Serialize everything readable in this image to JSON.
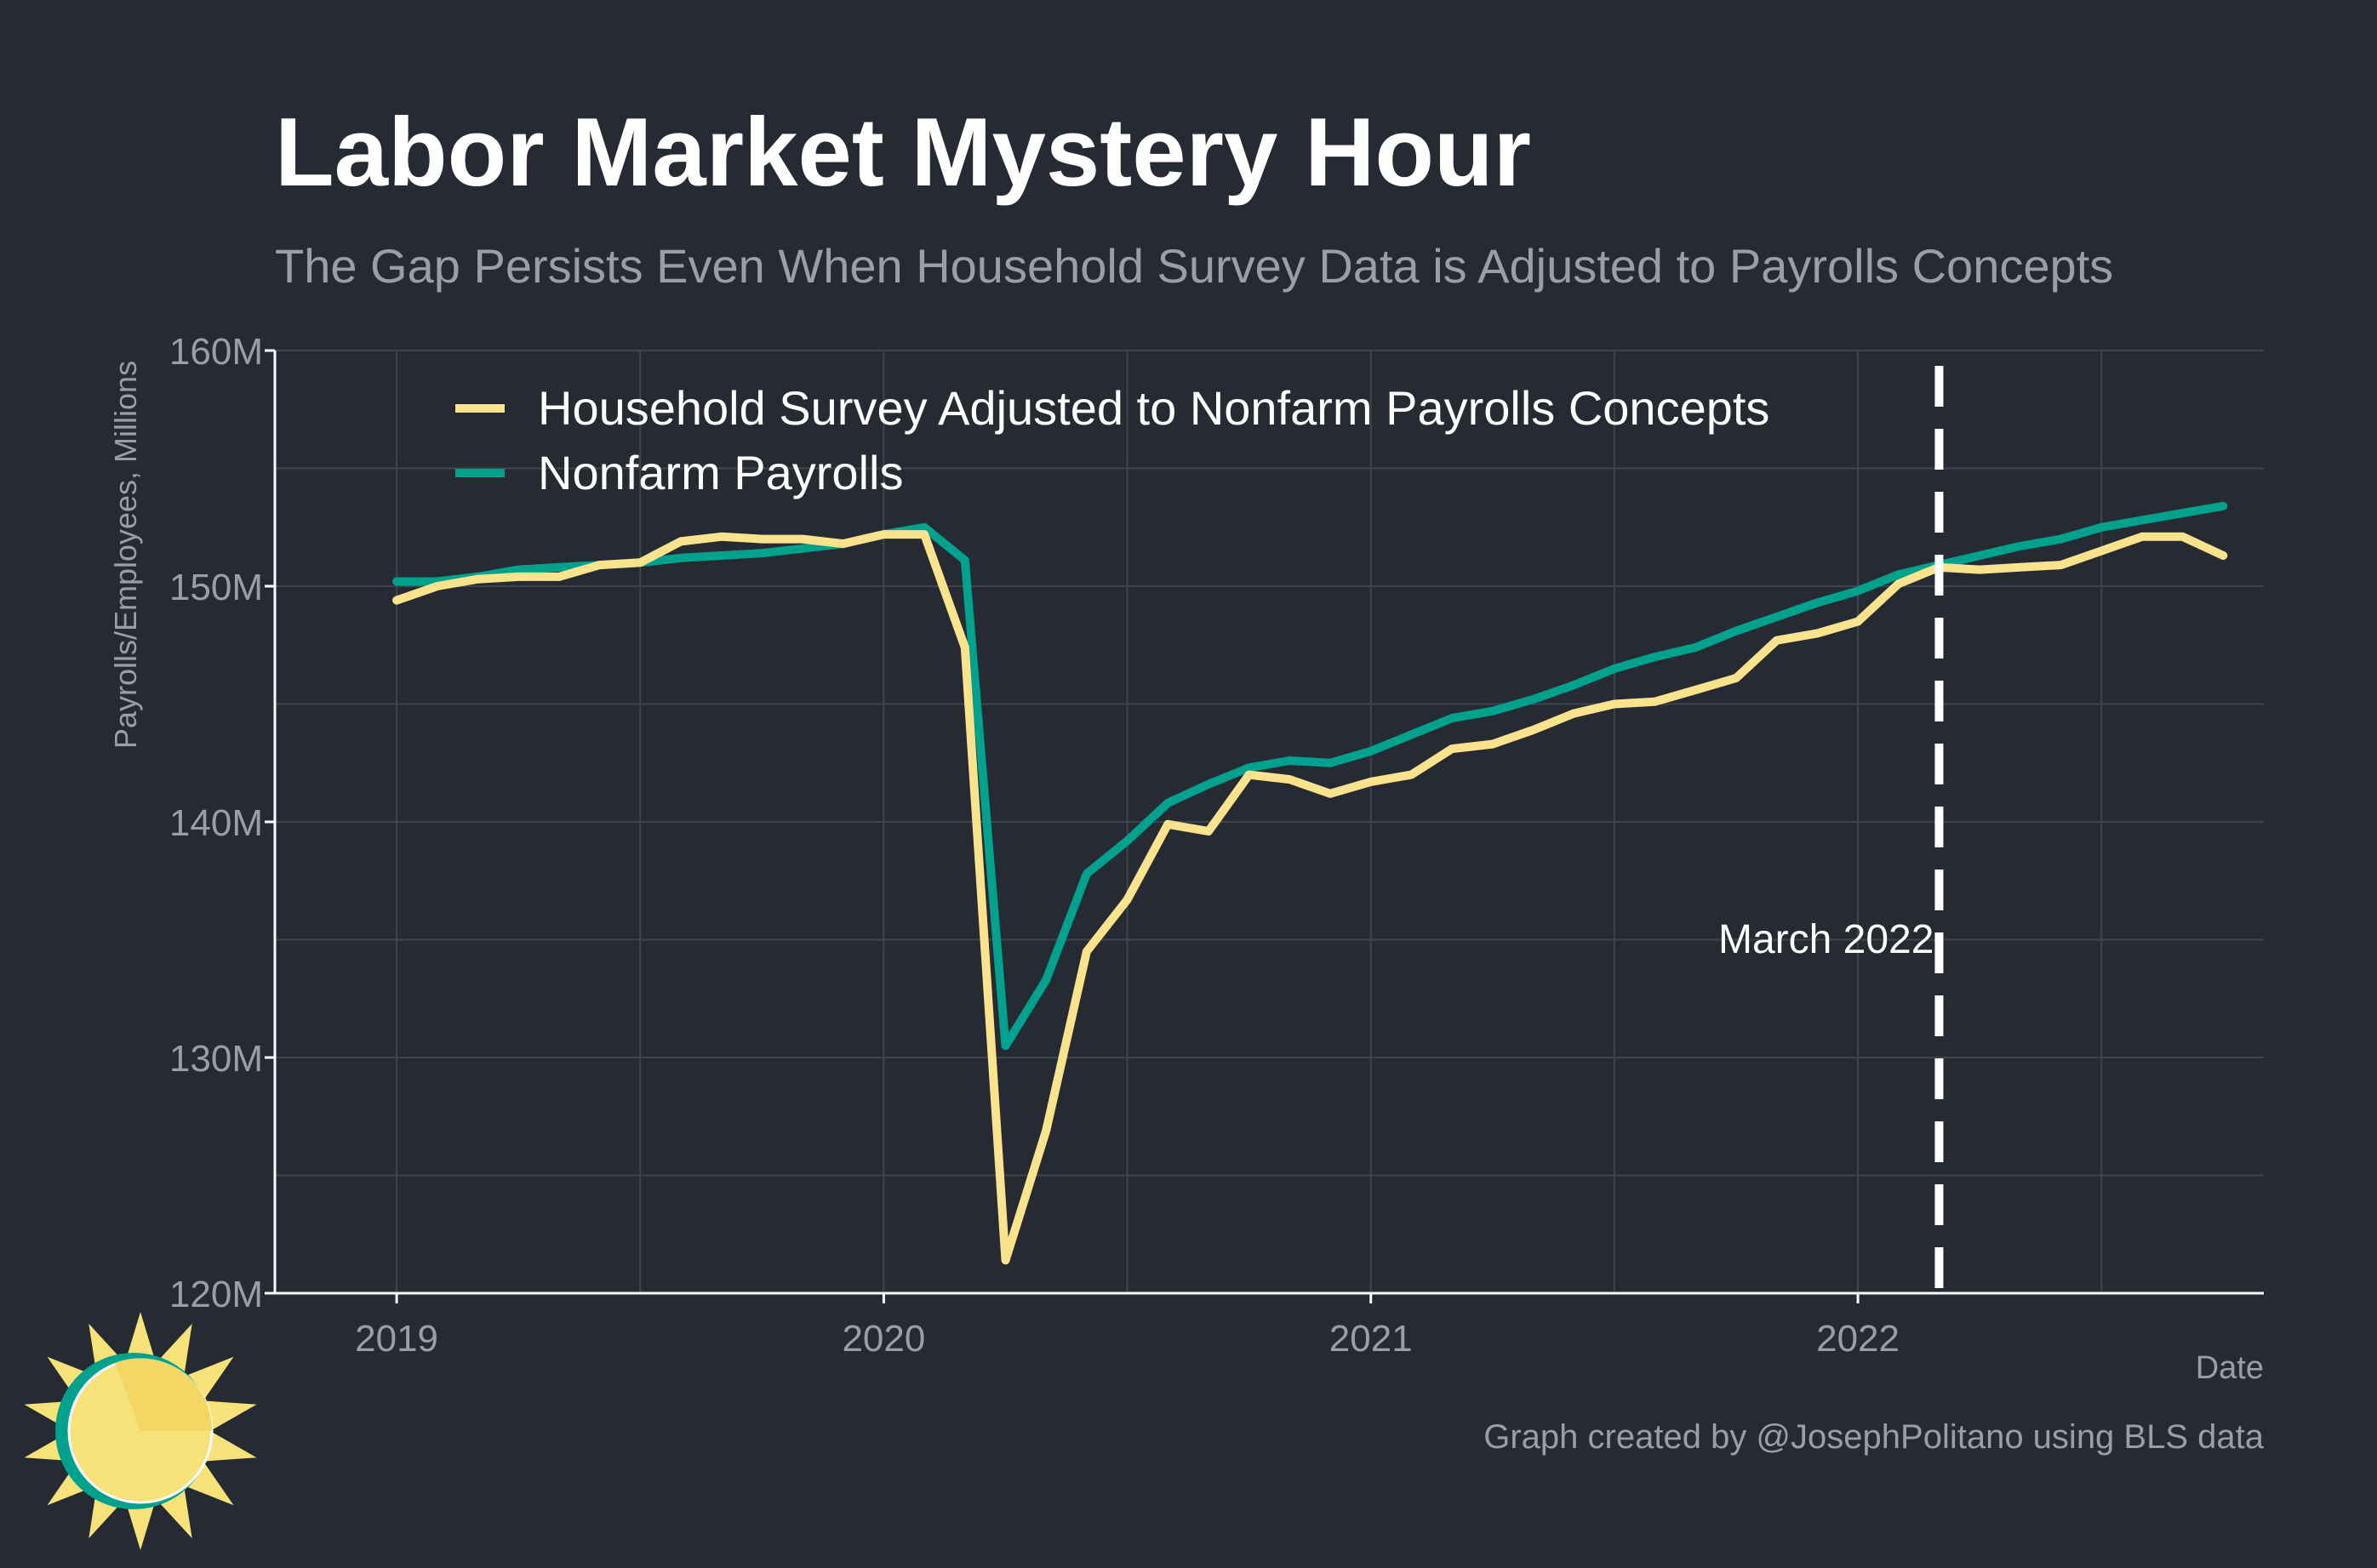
{
  "colors": {
    "background": "#252a33",
    "grid": "#3f444d",
    "axis": "#ffffff",
    "household": "#fbe38e",
    "payrolls": "#00a28e",
    "text_muted": "#9a9ea6",
    "logo_sun": "#f7e27a",
    "logo_ring": "#00a28e"
  },
  "chart_data": {
    "type": "line",
    "title": "Labor Market Mystery Hour",
    "subtitle": "The Gap Persists Even When Household Survey Data is Adjusted to Payrolls Concepts",
    "xlabel": "Date",
    "ylabel": "Payrolls/Employees, Millions",
    "xlim": [
      "2018-10",
      "2022-11"
    ],
    "ylim": [
      120,
      160
    ],
    "y_ticks": [
      120,
      130,
      140,
      150,
      160
    ],
    "y_tick_labels": [
      "120M",
      "130M",
      "140M",
      "150M",
      "160M"
    ],
    "x_ticks": [
      "2019-01",
      "2020-01",
      "2021-01",
      "2022-01"
    ],
    "x_tick_labels": [
      "2019",
      "2020",
      "2021",
      "2022"
    ],
    "grid": true,
    "legend_position": "top-left",
    "x": [
      "2019-01",
      "2019-02",
      "2019-03",
      "2019-04",
      "2019-05",
      "2019-06",
      "2019-07",
      "2019-08",
      "2019-09",
      "2019-10",
      "2019-11",
      "2019-12",
      "2020-01",
      "2020-02",
      "2020-03",
      "2020-04",
      "2020-05",
      "2020-06",
      "2020-07",
      "2020-08",
      "2020-09",
      "2020-10",
      "2020-11",
      "2020-12",
      "2021-01",
      "2021-02",
      "2021-03",
      "2021-04",
      "2021-05",
      "2021-06",
      "2021-07",
      "2021-08",
      "2021-09",
      "2021-10",
      "2021-11",
      "2021-12",
      "2022-01",
      "2022-02",
      "2022-03",
      "2022-04",
      "2022-05",
      "2022-06",
      "2022-07",
      "2022-08",
      "2022-09",
      "2022-10"
    ],
    "series": [
      {
        "name": "Household Survey Adjusted to Nonfarm Payrolls Concepts",
        "color": "#fbe38e",
        "values": [
          149.4,
          150.0,
          150.3,
          150.4,
          150.4,
          150.9,
          151.0,
          151.9,
          152.1,
          152.0,
          152.0,
          151.8,
          152.2,
          152.2,
          147.4,
          121.4,
          126.9,
          134.5,
          136.7,
          139.9,
          139.6,
          142.0,
          141.8,
          141.2,
          141.7,
          142.0,
          143.1,
          143.3,
          143.9,
          144.6,
          145.0,
          145.1,
          145.6,
          146.1,
          147.7,
          148.0,
          148.5,
          150.1,
          150.8,
          150.7,
          150.8,
          150.9,
          151.5,
          152.1,
          152.1,
          151.3
        ]
      },
      {
        "name": "Nonfarm Payrolls",
        "color": "#00a28e",
        "values": [
          150.2,
          150.2,
          150.4,
          150.7,
          150.8,
          150.9,
          151.0,
          151.2,
          151.3,
          151.4,
          151.6,
          151.8,
          152.2,
          152.5,
          151.1,
          130.5,
          133.3,
          137.8,
          139.2,
          140.8,
          141.6,
          142.3,
          142.6,
          142.5,
          143.0,
          143.7,
          144.4,
          144.7,
          145.2,
          145.8,
          146.5,
          147.0,
          147.4,
          148.1,
          148.7,
          149.3,
          149.8,
          150.5,
          150.9,
          151.3,
          151.7,
          152.0,
          152.5,
          152.8,
          153.1,
          153.4
        ]
      }
    ],
    "annotations": [
      {
        "type": "vline",
        "x": "2022-03",
        "label": "March 2022",
        "style": "dashed",
        "color": "#ffffff"
      }
    ]
  },
  "credit": "Graph created by @JosephPolitano using BLS data"
}
